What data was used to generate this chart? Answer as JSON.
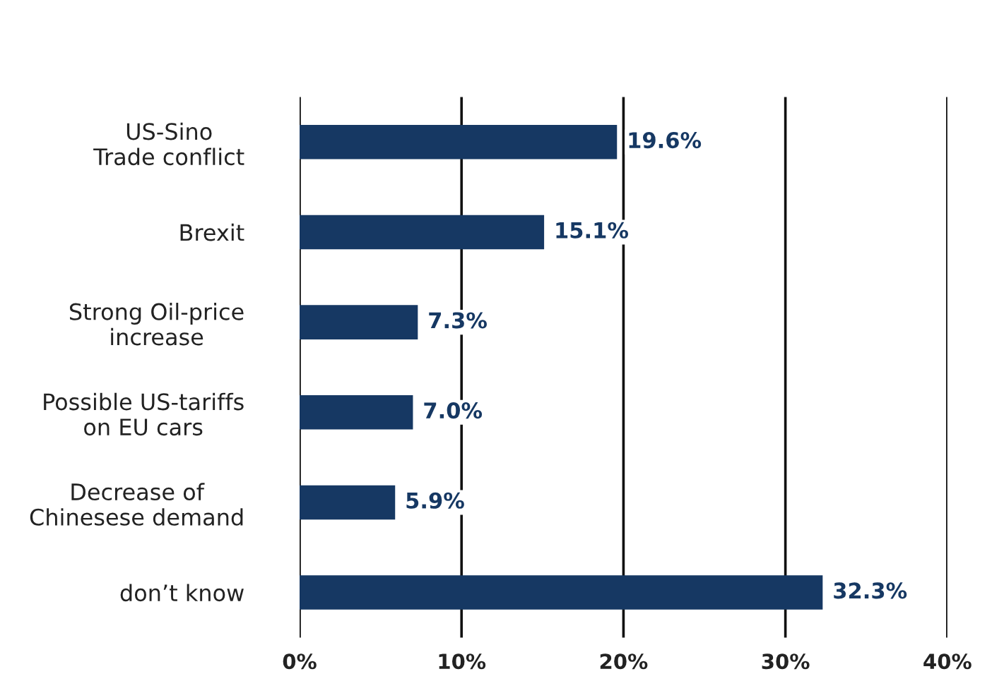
{
  "chart_data": {
    "type": "bar",
    "orientation": "horizontal",
    "categories": [
      "US-Sino\nTrade conflict",
      "Brexit",
      "Strong Oil-price\nincrease",
      "Possible US-tariffs\non EU cars",
      "Decrease of\nChinesese demand",
      "don’t know"
    ],
    "values": [
      19.6,
      15.1,
      7.3,
      7.0,
      5.9,
      32.3
    ],
    "value_labels": [
      "19.6%",
      "15.1%",
      "7.3%",
      "7.0%",
      "5.9%",
      "32.3%"
    ],
    "color": "#163863",
    "xlim": [
      0,
      40
    ],
    "xticks": [
      {
        "value": 0,
        "label": "0%"
      },
      {
        "value": 10,
        "label": "10%"
      },
      {
        "value": 20,
        "label": "20%"
      },
      {
        "value": 30,
        "label": "30%"
      },
      {
        "value": 40,
        "label": "40%"
      }
    ],
    "grid": "x"
  }
}
